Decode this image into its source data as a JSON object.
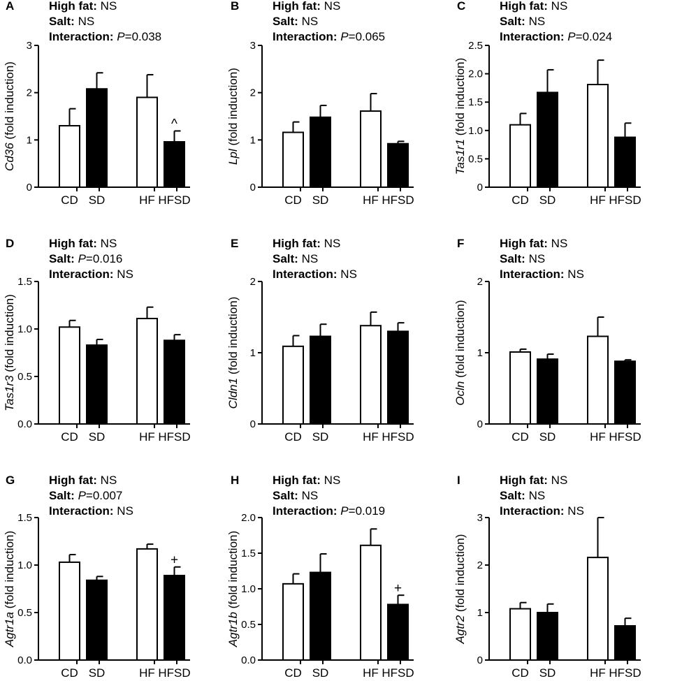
{
  "colors": {
    "control": "#ffffff",
    "salt": "#000000",
    "axis": "#000000"
  },
  "chart_data": [
    {
      "type": "bar",
      "panel": "A",
      "gene": "Cd36",
      "ylabel_suffix": " (fold induction)",
      "categories": [
        "CD",
        "SD",
        "HF",
        "HFSD"
      ],
      "values": [
        1.3,
        2.08,
        1.9,
        0.96
      ],
      "errors": [
        0.36,
        0.34,
        0.48,
        0.23
      ],
      "fill_colors": [
        "#ffffff",
        "#000000",
        "#ffffff",
        "#000000"
      ],
      "ylim": [
        0,
        3
      ],
      "ticks": [
        0,
        1,
        2,
        3
      ],
      "tick_labels": [
        "0",
        "1",
        "2",
        "3"
      ],
      "stats": {
        "high_fat": "NS",
        "salt": "NS",
        "interaction": "=0.038",
        "interaction_has_p": true
      },
      "annotations": [
        {
          "bar": 3,
          "text": "^"
        }
      ]
    },
    {
      "type": "bar",
      "panel": "B",
      "gene": "Lpl",
      "ylabel_suffix": " (fold induction)",
      "categories": [
        "CD",
        "SD",
        "HF",
        "HFSD"
      ],
      "values": [
        1.16,
        1.48,
        1.61,
        0.92
      ],
      "errors": [
        0.22,
        0.25,
        0.37,
        0.05
      ],
      "fill_colors": [
        "#ffffff",
        "#000000",
        "#ffffff",
        "#000000"
      ],
      "ylim": [
        0,
        3
      ],
      "ticks": [
        0,
        1,
        2,
        3
      ],
      "tick_labels": [
        "0",
        "1",
        "2",
        "3"
      ],
      "stats": {
        "high_fat": "NS",
        "salt": "NS",
        "interaction": "=0.065",
        "interaction_has_p": true
      },
      "annotations": []
    },
    {
      "type": "bar",
      "panel": "C",
      "gene": "Tas1r1",
      "ylabel_suffix": " (fold induction)",
      "categories": [
        "CD",
        "SD",
        "HF",
        "HFSD"
      ],
      "values": [
        1.1,
        1.67,
        1.81,
        0.88
      ],
      "errors": [
        0.2,
        0.4,
        0.43,
        0.25
      ],
      "fill_colors": [
        "#ffffff",
        "#000000",
        "#ffffff",
        "#000000"
      ],
      "ylim": [
        0,
        2.5
      ],
      "ticks": [
        0,
        0.5,
        1,
        1.5,
        2,
        2.5
      ],
      "tick_labels": [
        "0",
        "0.5",
        "1.0",
        "1.5",
        "2.0",
        "2.5"
      ],
      "stats": {
        "high_fat": "NS",
        "salt": "NS",
        "interaction": "=0.024",
        "interaction_has_p": true
      },
      "annotations": []
    },
    {
      "type": "bar",
      "panel": "D",
      "gene": "Tas1r3",
      "ylabel_suffix": " (fold induction)",
      "categories": [
        "CD",
        "SD",
        "HF",
        "HFSD"
      ],
      "values": [
        1.02,
        0.83,
        1.11,
        0.88
      ],
      "errors": [
        0.07,
        0.06,
        0.12,
        0.06
      ],
      "fill_colors": [
        "#ffffff",
        "#000000",
        "#ffffff",
        "#000000"
      ],
      "ylim": [
        0,
        1.5
      ],
      "ticks": [
        0,
        0.5,
        1,
        1.5
      ],
      "tick_labels": [
        "0.0",
        "0.5",
        "1.0",
        "1.5"
      ],
      "stats": {
        "high_fat": "NS",
        "salt": "=0.016",
        "salt_has_p": true,
        "interaction": "NS"
      },
      "annotations": []
    },
    {
      "type": "bar",
      "panel": "E",
      "gene": "Cldn1",
      "ylabel_suffix": " (fold induction)",
      "categories": [
        "CD",
        "SD",
        "HF",
        "HFSD"
      ],
      "values": [
        1.09,
        1.23,
        1.38,
        1.3
      ],
      "errors": [
        0.15,
        0.17,
        0.19,
        0.12
      ],
      "fill_colors": [
        "#ffffff",
        "#000000",
        "#ffffff",
        "#000000"
      ],
      "ylim": [
        0,
        2
      ],
      "ticks": [
        0,
        1,
        2
      ],
      "tick_labels": [
        "0",
        "1",
        "2"
      ],
      "stats": {
        "high_fat": "NS",
        "salt": "NS",
        "interaction": "NS"
      },
      "annotations": []
    },
    {
      "type": "bar",
      "panel": "F",
      "gene": "Ocln",
      "ylabel_suffix": " (fold induction)",
      "categories": [
        "CD",
        "SD",
        "HF",
        "HFSD"
      ],
      "values": [
        1.01,
        0.91,
        1.23,
        0.88
      ],
      "errors": [
        0.04,
        0.07,
        0.27,
        0.02
      ],
      "fill_colors": [
        "#ffffff",
        "#000000",
        "#ffffff",
        "#000000"
      ],
      "ylim": [
        0,
        2
      ],
      "ticks": [
        0,
        1,
        2
      ],
      "tick_labels": [
        "0",
        "1",
        "2"
      ],
      "stats": {
        "high_fat": "NS",
        "salt": "NS",
        "interaction": "NS"
      },
      "annotations": []
    },
    {
      "type": "bar",
      "panel": "G",
      "gene": "Agtr1a",
      "ylabel_suffix": " (fold induction)",
      "categories": [
        "CD",
        "SD",
        "HF",
        "HFSD"
      ],
      "values": [
        1.03,
        0.84,
        1.17,
        0.89
      ],
      "errors": [
        0.08,
        0.04,
        0.05,
        0.09
      ],
      "fill_colors": [
        "#ffffff",
        "#000000",
        "#ffffff",
        "#000000"
      ],
      "ylim": [
        0,
        1.5
      ],
      "ticks": [
        0,
        0.5,
        1,
        1.5
      ],
      "tick_labels": [
        "0.0",
        "0.5",
        "1.0",
        "1.5"
      ],
      "stats": {
        "high_fat": "NS",
        "salt": "=0.007",
        "salt_has_p": true,
        "interaction": "NS"
      },
      "annotations": [
        {
          "bar": 3,
          "text": "+"
        }
      ]
    },
    {
      "type": "bar",
      "panel": "H",
      "gene": "Agtr1b",
      "ylabel_suffix": " (fold induction)",
      "categories": [
        "CD",
        "SD",
        "HF",
        "HFSD"
      ],
      "values": [
        1.07,
        1.23,
        1.61,
        0.78
      ],
      "errors": [
        0.14,
        0.26,
        0.23,
        0.13
      ],
      "fill_colors": [
        "#ffffff",
        "#000000",
        "#ffffff",
        "#000000"
      ],
      "ylim": [
        0,
        2
      ],
      "ticks": [
        0,
        0.5,
        1,
        1.5,
        2
      ],
      "tick_labels": [
        "0.0",
        "0.5",
        "1.0",
        "1.5",
        "2.0"
      ],
      "stats": {
        "high_fat": "NS",
        "salt": "NS",
        "interaction": "=0.019",
        "interaction_has_p": true
      },
      "annotations": [
        {
          "bar": 3,
          "text": "+"
        }
      ]
    },
    {
      "type": "bar",
      "panel": "I",
      "gene": "Agtr2",
      "ylabel_suffix": " (fold induction)",
      "categories": [
        "CD",
        "SD",
        "HF",
        "HFSD"
      ],
      "values": [
        1.08,
        1.0,
        2.16,
        0.72
      ],
      "errors": [
        0.13,
        0.18,
        0.84,
        0.16
      ],
      "fill_colors": [
        "#ffffff",
        "#000000",
        "#ffffff",
        "#000000"
      ],
      "ylim": [
        0,
        3
      ],
      "ticks": [
        0,
        1,
        2,
        3
      ],
      "tick_labels": [
        "0",
        "1",
        "2",
        "3"
      ],
      "stats": {
        "high_fat": "NS",
        "salt": "NS",
        "interaction": "NS"
      },
      "annotations": []
    }
  ],
  "labels": {
    "high_fat": "High fat:",
    "salt": "Salt:",
    "interaction": "Interaction:",
    "p_symbol": "P"
  }
}
